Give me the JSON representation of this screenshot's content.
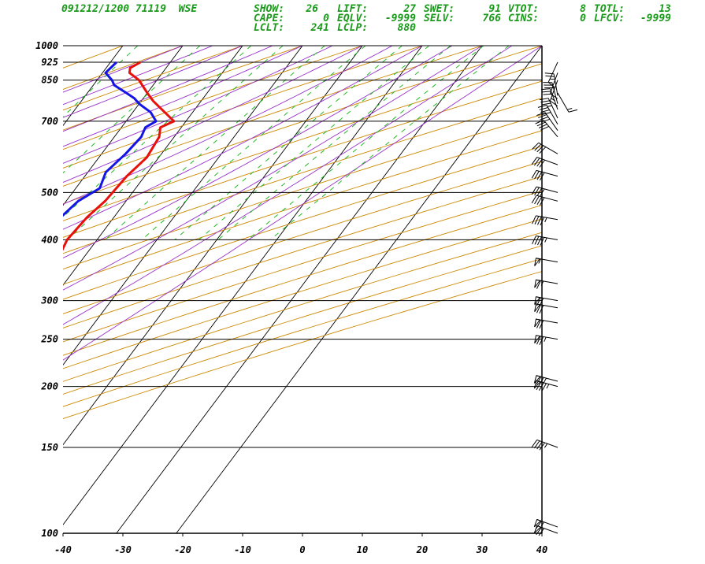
{
  "header": {
    "station": "091212/1200 71119  WSE",
    "indices": [
      {
        "label": "SHOW:",
        "value": "26"
      },
      {
        "label": "LIFT:",
        "value": "27"
      },
      {
        "label": "SWET:",
        "value": "91"
      },
      {
        "label": "VTOT:",
        "value": "8"
      },
      {
        "label": "TOTL:",
        "value": "13"
      },
      {
        "label": "CAPE:",
        "value": "0"
      },
      {
        "label": "EQLV:",
        "value": "-9999"
      },
      {
        "label": "SELV:",
        "value": "766"
      },
      {
        "label": "CINS:",
        "value": "0"
      },
      {
        "label": "LFCV:",
        "value": "-9999"
      },
      {
        "label": "LCLT:",
        "value": "241"
      },
      {
        "label": "LCLP:",
        "value": "880"
      }
    ]
  },
  "chart_data": {
    "type": "line",
    "title": "",
    "xlabel": "",
    "ylabel": "",
    "x_axis": {
      "ticks": [
        -40,
        -30,
        -20,
        -10,
        0,
        10,
        20,
        30,
        40
      ],
      "range": [
        -40,
        40
      ]
    },
    "y_axis": {
      "scale": "log",
      "ticks": [
        100,
        150,
        200,
        250,
        300,
        400,
        500,
        700,
        850,
        925,
        1000
      ],
      "range": [
        1000,
        100
      ]
    },
    "series": [
      {
        "color": "#e8100a",
        "points": [
          [
            925,
            -25
          ],
          [
            900,
            -26
          ],
          [
            880,
            -25.5
          ],
          [
            850,
            -23
          ],
          [
            800,
            -20
          ],
          [
            770,
            -18
          ],
          [
            700,
            -12
          ],
          [
            680,
            -13.5
          ],
          [
            650,
            -12.5
          ],
          [
            590,
            -12
          ],
          [
            540,
            -13
          ],
          [
            480,
            -13.5
          ],
          [
            445,
            -14.5
          ],
          [
            400,
            -15
          ],
          [
            360,
            -14
          ],
          [
            320,
            -14.5
          ],
          [
            300,
            -13
          ],
          [
            290,
            -11
          ],
          [
            275,
            -10
          ],
          [
            260,
            -10
          ],
          [
            250,
            -9
          ],
          [
            240,
            -5
          ],
          [
            220,
            -2
          ],
          [
            200,
            0
          ],
          [
            180,
            3
          ],
          [
            165,
            6.5
          ],
          [
            148,
            10
          ],
          [
            140,
            10.5
          ],
          [
            120,
            12.5
          ],
          [
            110,
            16
          ],
          [
            100,
            17.5
          ]
        ]
      },
      {
        "color": "#1414e6",
        "points": [
          [
            925,
            -29
          ],
          [
            880,
            -29.5
          ],
          [
            850,
            -27.5
          ],
          [
            830,
            -26.5
          ],
          [
            800,
            -23.5
          ],
          [
            780,
            -21.5
          ],
          [
            760,
            -20
          ],
          [
            730,
            -17
          ],
          [
            700,
            -15
          ],
          [
            680,
            -16
          ],
          [
            650,
            -15.5
          ],
          [
            600,
            -16
          ],
          [
            550,
            -17
          ],
          [
            510,
            -16
          ],
          [
            480,
            -18
          ],
          [
            440,
            -19
          ],
          [
            400,
            -18
          ],
          [
            360,
            -20
          ],
          [
            330,
            -20.5
          ],
          [
            310,
            -19.5
          ],
          [
            290,
            -23.5
          ],
          [
            270,
            -22
          ],
          [
            250,
            -22.5
          ],
          [
            230,
            -24
          ],
          [
            200,
            -25
          ],
          [
            180,
            -22.5
          ],
          [
            160,
            -19.5
          ],
          [
            150,
            -18
          ],
          [
            140,
            -17
          ],
          [
            125,
            -15
          ],
          [
            115,
            -12.5
          ],
          [
            100,
            -9
          ]
        ]
      }
    ],
    "wind_barbs": [
      {
        "p": 100,
        "dir": 290,
        "spd": 70
      },
      {
        "p": 103,
        "dir": 290,
        "spd": 65
      },
      {
        "p": 150,
        "dir": 290,
        "spd": 45
      },
      {
        "p": 200,
        "dir": 285,
        "spd": 85
      },
      {
        "p": 205,
        "dir": 285,
        "spd": 80
      },
      {
        "p": 250,
        "dir": 280,
        "spd": 75
      },
      {
        "p": 270,
        "dir": 280,
        "spd": 70
      },
      {
        "p": 290,
        "dir": 280,
        "spd": 70
      },
      {
        "p": 300,
        "dir": 280,
        "spd": 70
      },
      {
        "p": 325,
        "dir": 280,
        "spd": 65
      },
      {
        "p": 360,
        "dir": 280,
        "spd": 55
      },
      {
        "p": 400,
        "dir": 280,
        "spd": 45
      },
      {
        "p": 440,
        "dir": 280,
        "spd": 45
      },
      {
        "p": 480,
        "dir": 285,
        "spd": 40
      },
      {
        "p": 500,
        "dir": 285,
        "spd": 40
      },
      {
        "p": 540,
        "dir": 285,
        "spd": 40
      },
      {
        "p": 570,
        "dir": 290,
        "spd": 40
      },
      {
        "p": 600,
        "dir": 300,
        "spd": 40
      },
      {
        "p": 650,
        "dir": 320,
        "spd": 40
      },
      {
        "p": 670,
        "dir": 325,
        "spd": 40
      },
      {
        "p": 690,
        "dir": 330,
        "spd": 40
      },
      {
        "p": 710,
        "dir": 335,
        "spd": 35
      },
      {
        "p": 740,
        "dir": 340,
        "spd": 30
      },
      {
        "p": 760,
        "dir": 345,
        "spd": 30
      },
      {
        "p": 790,
        "dir": 350,
        "spd": 25
      },
      {
        "p": 800,
        "dir": 150,
        "spd": 15
      },
      {
        "p": 850,
        "dir": 200,
        "spd": 15
      },
      {
        "p": 880,
        "dir": 200,
        "spd": 10
      },
      {
        "p": 925,
        "dir": 205,
        "spd": 10
      }
    ]
  }
}
